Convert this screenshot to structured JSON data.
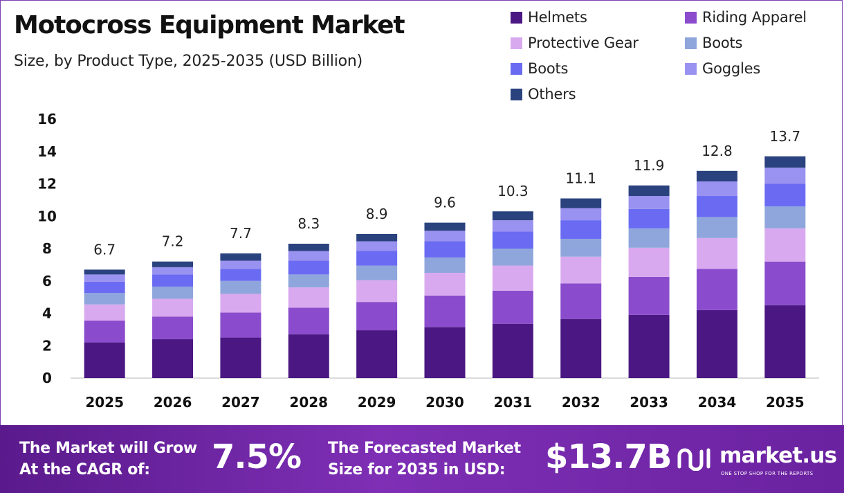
{
  "header": {
    "title": "Motocross Equipment Market",
    "subtitle": "Size, by Product Type, 2025-2035 (USD Billion)"
  },
  "legend": [
    {
      "label": "Helmets",
      "color": "#4a1783"
    },
    {
      "label": "Riding Apparel",
      "color": "#8a4ccc"
    },
    {
      "label": "Protective Gear",
      "color": "#d9a9ef"
    },
    {
      "label": "Boots",
      "color": "#8fa6dc"
    },
    {
      "label": "Boots",
      "color": "#6a6bf2"
    },
    {
      "label": "Goggles",
      "color": "#9a92f0"
    },
    {
      "label": "Others",
      "color": "#2a427e"
    }
  ],
  "chart_data": {
    "type": "bar",
    "stacked": true,
    "categories": [
      "2025",
      "2026",
      "2027",
      "2028",
      "2029",
      "2030",
      "2031",
      "2032",
      "2033",
      "2034",
      "2035"
    ],
    "totals": [
      6.7,
      7.2,
      7.7,
      8.3,
      8.9,
      9.6,
      10.3,
      11.1,
      11.9,
      12.8,
      13.7
    ],
    "series": [
      {
        "name": "Helmets",
        "color": "#4a1783",
        "values": [
          2.2,
          2.4,
          2.5,
          2.7,
          2.95,
          3.15,
          3.35,
          3.65,
          3.9,
          4.2,
          4.5
        ]
      },
      {
        "name": "Riding Apparel",
        "color": "#8a4ccc",
        "values": [
          1.35,
          1.4,
          1.55,
          1.65,
          1.75,
          1.95,
          2.05,
          2.2,
          2.35,
          2.55,
          2.7
        ]
      },
      {
        "name": "Protective Gear",
        "color": "#d9a9ef",
        "values": [
          1.0,
          1.1,
          1.15,
          1.25,
          1.35,
          1.4,
          1.55,
          1.65,
          1.8,
          1.9,
          2.05
        ]
      },
      {
        "name": "Boots",
        "color": "#8fa6dc",
        "values": [
          0.7,
          0.75,
          0.8,
          0.8,
          0.9,
          0.95,
          1.05,
          1.1,
          1.2,
          1.3,
          1.35
        ]
      },
      {
        "name": "Boots",
        "color": "#6a6bf2",
        "values": [
          0.7,
          0.75,
          0.75,
          0.85,
          0.9,
          1.0,
          1.05,
          1.15,
          1.2,
          1.3,
          1.4
        ]
      },
      {
        "name": "Goggles",
        "color": "#9a92f0",
        "values": [
          0.45,
          0.45,
          0.5,
          0.6,
          0.6,
          0.65,
          0.7,
          0.75,
          0.8,
          0.9,
          1.0
        ]
      },
      {
        "name": "Others",
        "color": "#2a427e",
        "values": [
          0.3,
          0.35,
          0.45,
          0.45,
          0.45,
          0.5,
          0.55,
          0.6,
          0.65,
          0.65,
          0.7
        ]
      }
    ],
    "ylim": [
      0,
      16
    ],
    "yticks": [
      0,
      2,
      4,
      6,
      8,
      10,
      12,
      14,
      16
    ],
    "grid": false,
    "legend_position": "top-right",
    "xlabel": "",
    "ylabel": ""
  },
  "footer": {
    "cagr_label_line1": "The Market will Grow",
    "cagr_label_line2": "At the CAGR of:",
    "cagr_value": "7.5%",
    "forecast_label_line1": "The Forecasted Market",
    "forecast_label_line2": "Size for 2035 in USD:",
    "forecast_value": "$13.7B",
    "brand_name": "market.us",
    "brand_tagline": "ONE STOP SHOP FOR THE REPORTS",
    "brand_icon": "market-us-logo-icon"
  }
}
